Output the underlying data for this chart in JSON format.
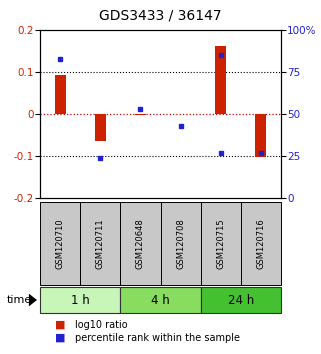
{
  "title": "GDS3433 / 36147",
  "samples": [
    "GSM120710",
    "GSM120711",
    "GSM120648",
    "GSM120708",
    "GSM120715",
    "GSM120716"
  ],
  "groups": [
    {
      "label": "1 h",
      "indices": [
        0,
        1
      ],
      "color": "#c8f5b8"
    },
    {
      "label": "4 h",
      "indices": [
        2,
        3
      ],
      "color": "#88dc60"
    },
    {
      "label": "24 h",
      "indices": [
        4,
        5
      ],
      "color": "#44c030"
    }
  ],
  "log10_ratio": [
    0.093,
    -0.063,
    -0.003,
    0.0,
    0.163,
    -0.101
  ],
  "percentile_rank": [
    83,
    24,
    53,
    43,
    85,
    27
  ],
  "percentile_rank2": [
    null,
    null,
    null,
    null,
    27,
    null
  ],
  "ylim_left": [
    -0.2,
    0.2
  ],
  "ylim_right": [
    0,
    100
  ],
  "yticks_left": [
    -0.2,
    -0.1,
    0.0,
    0.1,
    0.2
  ],
  "yticks_right": [
    0,
    25,
    50,
    75,
    100
  ],
  "bar_color": "#cc2200",
  "dot_color": "#2222cc",
  "zero_line_color": "#cc0000",
  "bg_color": "#ffffff",
  "sample_box_color": "#c8c8c8",
  "legend_bar_label": "log10 ratio",
  "legend_dot_label": "percentile rank within the sample",
  "time_label": "time"
}
